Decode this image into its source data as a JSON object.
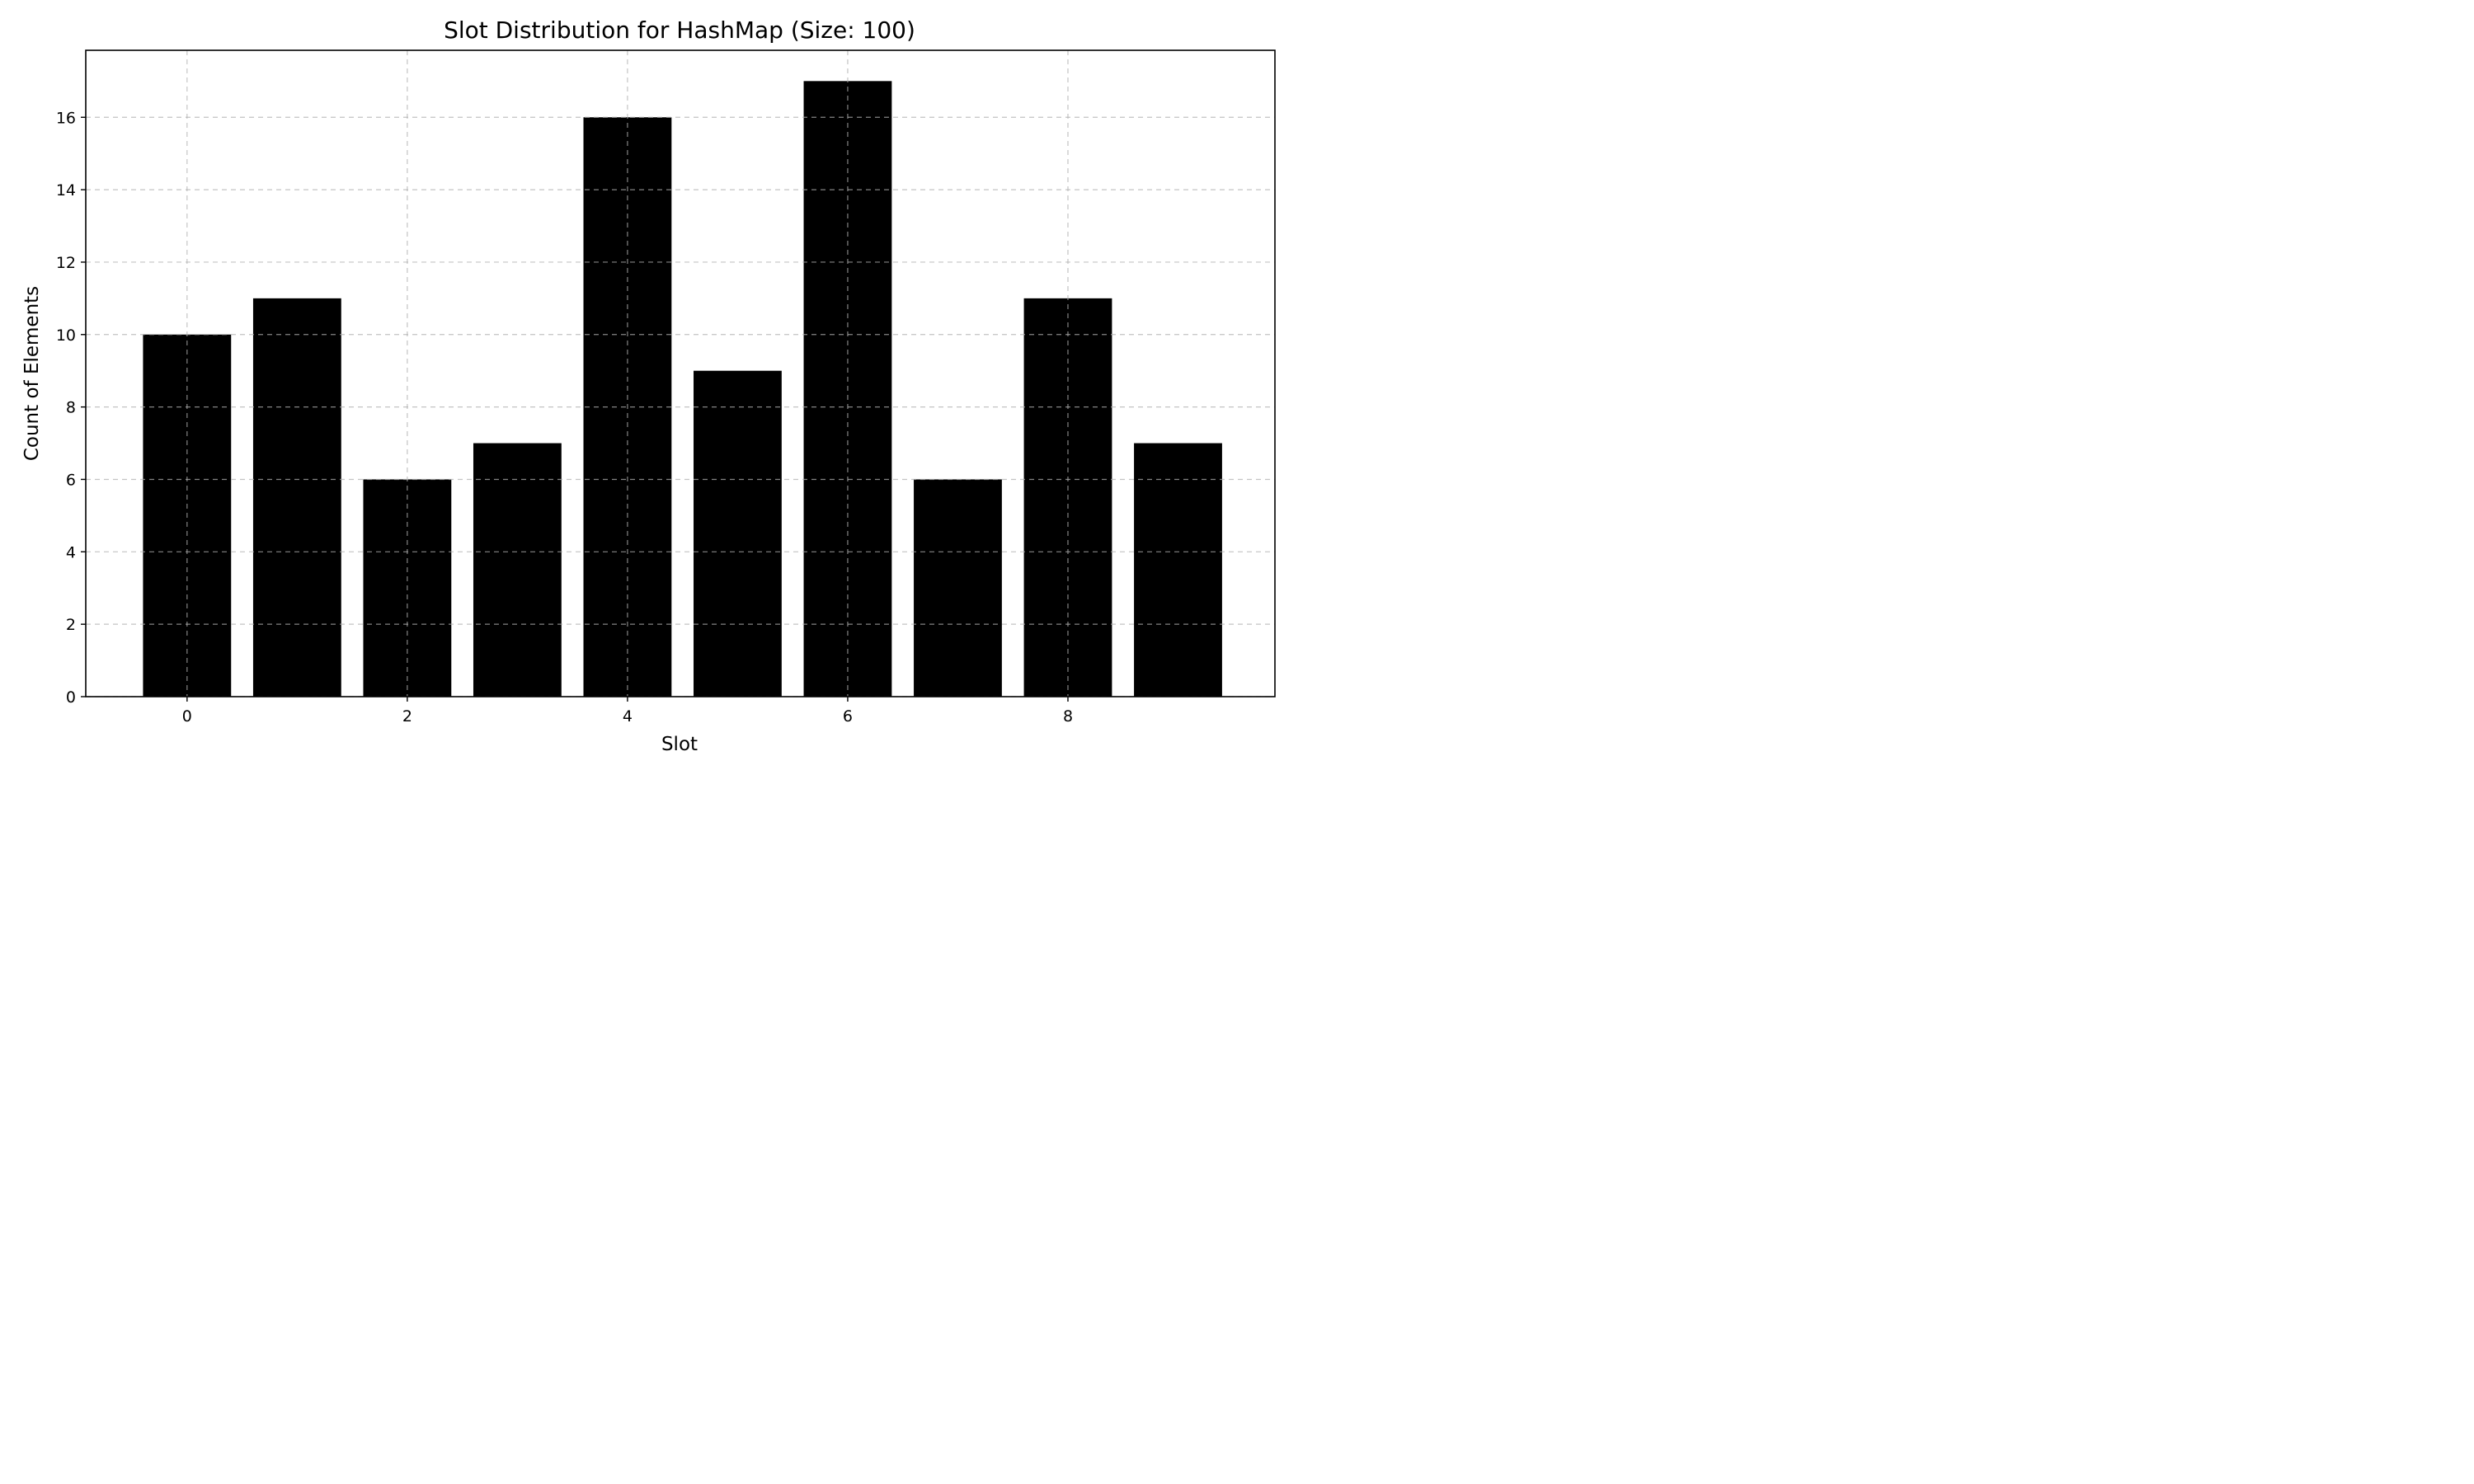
{
  "chart_data": {
    "type": "bar",
    "title": "Slot Distribution for HashMap (Size: 100)",
    "xlabel": "Slot",
    "ylabel": "Count of Elements",
    "categories": [
      0,
      1,
      2,
      3,
      4,
      5,
      6,
      7,
      8,
      9
    ],
    "values": [
      10,
      11,
      6,
      7,
      16,
      9,
      17,
      6,
      11,
      7
    ],
    "xticks": [
      0,
      2,
      4,
      6,
      8
    ],
    "yticks": [
      0,
      2,
      4,
      6,
      8,
      10,
      12,
      14,
      16
    ],
    "xlim": [
      -0.92,
      9.88
    ],
    "ylim": [
      0,
      17.85
    ],
    "bar_color": "#000000",
    "grid": true,
    "legend": "none"
  }
}
